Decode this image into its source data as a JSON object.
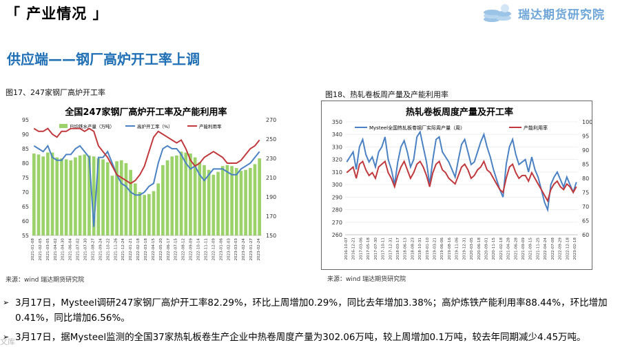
{
  "header": {
    "section_title": "「 产业情况 」",
    "brand_name": "瑞达期货研究院"
  },
  "subtitle": "供应端——钢厂高炉开工率上调",
  "figures": {
    "fig17_caption": "图17、247家钢厂高炉开工率",
    "fig18_caption": "图18、热轧卷板周产量及产能利用率",
    "source1": "来源：wind   瑞达期货研究院",
    "source2": "来源：wind    瑞达期货研究院"
  },
  "bullets": [
    "3月17日，Mysteel调研247家钢厂高炉开工率82.29%，环比上周增加0.29%，同比去年增加3.38%；高炉炼铁产能利用率88.44%，环比增加0.41%，同比增加6.56%。",
    "3月17日，据Mysteel监测的全国37家热轧板卷生产企业中热卷周度产量为302.06万吨，较上周增加0.1万吨，较去年同期减少4.45万吨。"
  ],
  "watermark": "文库",
  "chart_data": [
    {
      "type": "bar+line",
      "title": "全国247家钢厂高炉开工率及产能利用率",
      "legend": [
        "日均铁水产量（万吨）",
        "高炉开工率（%）",
        "产能利用率"
      ],
      "left_axis": {
        "ylim": [
          55,
          95
        ],
        "ticks": [
          55,
          60,
          65,
          70,
          75,
          80,
          85,
          90,
          95
        ]
      },
      "right_axis": {
        "ylim": [
          150,
          270
        ],
        "ticks": [
          150,
          170,
          190,
          210,
          230,
          250,
          270
        ]
      },
      "x_ticks": [
        "2021-01-08",
        "2021-02-05",
        "2021-03-05",
        "2021-04-02",
        "2021-04-30",
        "2021-06-04",
        "2021-07-02",
        "2021-07-30",
        "2021-08-27",
        "2021-09-24",
        "2021-10-22",
        "2021-11-26",
        "2021-12-24",
        "2022-01-21",
        "2022-02-18",
        "2022-03-18",
        "2022-04-15",
        "2022-05-20",
        "2022-06-17",
        "2022-07-15",
        "2022-08-12",
        "2022-09-09",
        "2022-10-14",
        "2022-11-11",
        "2022-12-09",
        "2023-01-06",
        "2023-02-03",
        "2023-03-03",
        "2023-02-24",
        "2023-01-27",
        "2023-02-24"
      ],
      "series": [
        {
          "name": "日均铁水产量（万吨）",
          "axis": "right",
          "color": "#9bd26a",
          "values": [
            235,
            234,
            232,
            236,
            236,
            231,
            230,
            229,
            228,
            231,
            233,
            234,
            233,
            232,
            230,
            229,
            226,
            212,
            227,
            228,
            225,
            218,
            204,
            195,
            192,
            193,
            196,
            204,
            223,
            228,
            232,
            233,
            237,
            236,
            235,
            231,
            226,
            223,
            218,
            213,
            216,
            222,
            223,
            222,
            220,
            217,
            218,
            220,
            224,
            230
          ]
        },
        {
          "name": "高炉开工率（%）",
          "axis": "left",
          "color": "#4a81c2",
          "values": [
            86,
            85,
            84,
            86,
            82,
            81,
            81,
            83,
            83,
            85,
            86,
            84,
            82,
            58,
            82,
            82,
            84,
            80,
            76,
            73,
            72,
            70,
            69,
            69,
            70,
            72,
            73,
            80,
            85,
            86,
            85,
            85,
            83,
            80,
            78,
            79,
            76,
            74,
            76,
            78,
            78,
            78,
            77,
            76,
            76,
            78,
            79,
            80,
            82,
            84
          ]
        },
        {
          "name": "产能利用率",
          "axis": "left",
          "color": "#c0393d",
          "values": [
            92,
            91,
            91,
            92,
            90,
            89,
            91,
            91,
            92,
            92,
            92,
            91,
            92,
            91,
            86,
            84,
            82,
            79,
            76,
            75,
            74,
            73,
            74,
            76,
            79,
            84,
            89,
            91,
            90,
            89,
            88,
            87,
            88,
            85,
            81,
            79,
            80,
            82,
            83,
            84,
            83,
            82,
            80,
            80,
            80,
            81,
            83,
            85,
            86,
            88
          ]
        }
      ]
    },
    {
      "type": "line",
      "title": "热轧卷板周度产量及开工率",
      "legend": [
        "Mysteel全国热轧板卷钢厂实际周产量（周）",
        "产能利用率"
      ],
      "left_axis": {
        "ylim": [
          260,
          350
        ],
        "ticks": [
          260,
          270,
          280,
          290,
          300,
          310,
          320,
          330,
          340,
          350
        ]
      },
      "right_axis": {
        "ylim": [
          60,
          100
        ],
        "ticks": [
          60,
          65,
          70,
          75,
          80,
          85,
          90,
          95,
          100
        ]
      },
      "x_ticks": [
        "2016-10-07",
        "2016-12-21",
        "2017-03-06",
        "2017-05-18",
        "2017-07-30",
        "2017-10-11",
        "2017-12-31",
        "2018-03-17",
        "2018-06-13",
        "2018-08-23",
        "2018-10-31",
        "2019-01-10",
        "2019-03-21",
        "2019-06-06",
        "2019-08-16",
        "2019-11-06",
        "2019-12-31",
        "2020-03-05",
        "2020-06-18",
        "2020-09-01",
        "2020-11-15",
        "2021-02-18",
        "2021-04-28",
        "2021-06-28",
        "2021-09-09",
        "2021-09-15",
        "2021-11-25",
        "2022-04-24",
        "2022-07-08",
        "2022-09-29",
        "2022-12-18",
        "2023-02-18"
      ],
      "series": [
        {
          "name": "Mysteel全国热轧板卷钢厂实际周产量（周）",
          "axis": "left",
          "color": "#4a81c2",
          "values": [
            318,
            322,
            326,
            312,
            330,
            336,
            324,
            318,
            322,
            314,
            326,
            330,
            338,
            320,
            312,
            300,
            318,
            330,
            335,
            326,
            314,
            320,
            338,
            342,
            330,
            318,
            300,
            320,
            336,
            338,
            326,
            322,
            318,
            312,
            306,
            320,
            332,
            336,
            326,
            316,
            318,
            326,
            334,
            340,
            330,
            322,
            312,
            304,
            296,
            290,
            316,
            330,
            336,
            324,
            316,
            318,
            320,
            310,
            322,
            312,
            306,
            296,
            286,
            280,
            300,
            306,
            310,
            304,
            298,
            306,
            300,
            294,
            302
          ]
        },
        {
          "name": "产能利用率",
          "axis": "right",
          "color": "#c0393d",
          "values": [
            82,
            83,
            84,
            80,
            85,
            86,
            83,
            81,
            82,
            80,
            84,
            85,
            86,
            82,
            80,
            77,
            81,
            84,
            86,
            83,
            80,
            82,
            85,
            86,
            84,
            81,
            77,
            82,
            85,
            86,
            83,
            82,
            80,
            79,
            78,
            81,
            84,
            85,
            83,
            80,
            81,
            83,
            84,
            86,
            83,
            82,
            80,
            78,
            76,
            75,
            80,
            84,
            85,
            82,
            80,
            81,
            81,
            79,
            82,
            80,
            78,
            76,
            74,
            72,
            76,
            78,
            79,
            77,
            76,
            78,
            77,
            75,
            77
          ]
        }
      ]
    }
  ]
}
